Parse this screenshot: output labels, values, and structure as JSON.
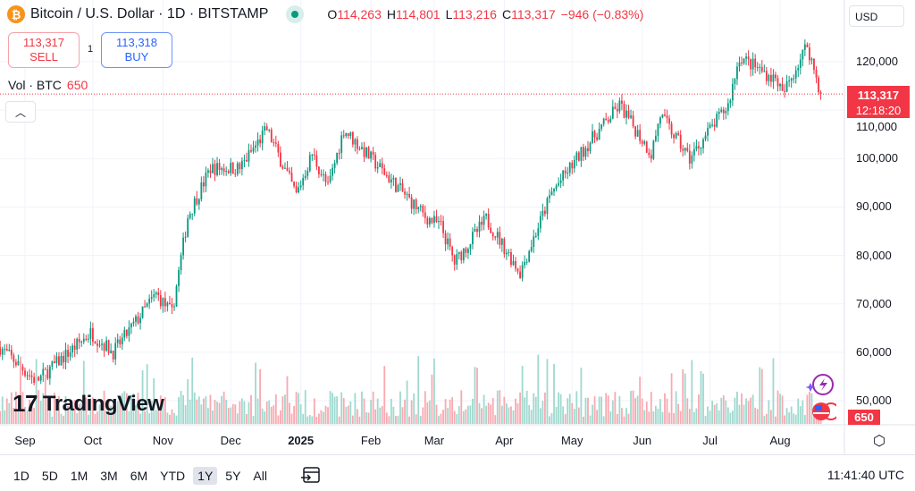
{
  "header": {
    "symbol": "Bitcoin / U.S. Dollar · 1D · BITSTAMP",
    "icon": "bitcoin-icon",
    "ohlc": {
      "o_label": "O",
      "o": "114,263",
      "h_label": "H",
      "h": "114,801",
      "l_label": "L",
      "l": "113,216",
      "c_label": "C",
      "c": "113,317",
      "change": "−946 (−0.83%)"
    }
  },
  "trade": {
    "sell_price": "113,317",
    "sell_label": "SELL",
    "spread": "1",
    "buy_price": "113,318",
    "buy_label": "BUY"
  },
  "volume_legend": {
    "label": "Vol · BTC",
    "value": "650"
  },
  "currency": "USD",
  "price_label": {
    "price": "113,317",
    "countdown": "12:18:20"
  },
  "volume_label": "650",
  "colors": {
    "up": "#089981",
    "down": "#f23645"
  },
  "chart_data": {
    "type": "candlestick",
    "y_ticks": [
      "120,000",
      "110,000",
      "100,000",
      "90,000",
      "80,000",
      "70,000",
      "60,000",
      "50,000"
    ],
    "y_tick_values": [
      120000,
      110000,
      100000,
      90000,
      80000,
      70000,
      60000,
      50000
    ],
    "ylim": [
      44000,
      136000
    ],
    "x_ticks": [
      "Sep",
      "Oct",
      "Nov",
      "Dec",
      "2025",
      "Feb",
      "Mar",
      "Apr",
      "May",
      "Jun",
      "Jul",
      "Aug"
    ],
    "x_tick_days": [
      0,
      30,
      61,
      91,
      122,
      153,
      181,
      212,
      242,
      273,
      303,
      334
    ],
    "close_keypoints": [
      [
        -11,
        61000
      ],
      [
        5,
        54000
      ],
      [
        29,
        64000
      ],
      [
        39,
        60000
      ],
      [
        58,
        72000
      ],
      [
        65,
        68000
      ],
      [
        72,
        88000
      ],
      [
        82,
        98000
      ],
      [
        95,
        98000
      ],
      [
        107,
        106000
      ],
      [
        120,
        92500
      ],
      [
        127,
        101000
      ],
      [
        134,
        94000
      ],
      [
        141,
        106000
      ],
      [
        153,
        100000
      ],
      [
        177,
        88000
      ],
      [
        184,
        86000
      ],
      [
        190,
        78500
      ],
      [
        204,
        87500
      ],
      [
        219,
        76500
      ],
      [
        233,
        93000
      ],
      [
        249,
        103000
      ],
      [
        263,
        111000
      ],
      [
        277,
        101000
      ],
      [
        281,
        109000
      ],
      [
        294,
        100000
      ],
      [
        303,
        106000
      ],
      [
        311,
        111000
      ],
      [
        316,
        121000
      ],
      [
        333,
        116000
      ],
      [
        335,
        113000
      ],
      [
        346,
        123500
      ],
      [
        352,
        113317
      ]
    ]
  },
  "logo": "TradingView",
  "bottom": {
    "ranges": [
      "1D",
      "5D",
      "1M",
      "3M",
      "6M",
      "YTD",
      "1Y",
      "5Y",
      "All"
    ],
    "active": "1Y",
    "time": "11:41:40 UTC"
  }
}
